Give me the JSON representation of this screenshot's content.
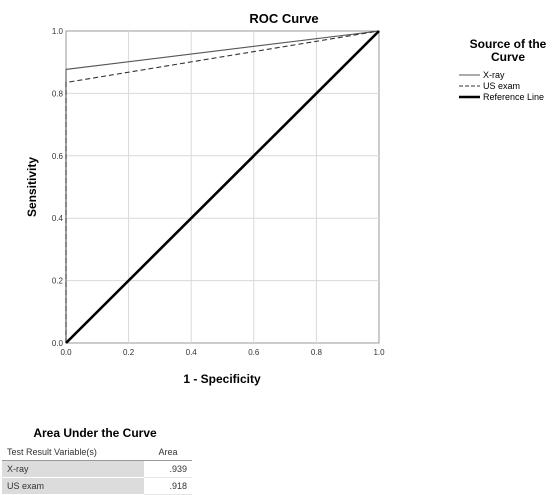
{
  "chart_data": {
    "type": "line",
    "title": "ROC Curve",
    "xlabel": "1 - Specificity",
    "ylabel": "Sensitivity",
    "xlim": [
      0,
      1
    ],
    "ylim": [
      0,
      1
    ],
    "xticks": [
      "0.0",
      "0.2",
      "0.4",
      "0.6",
      "0.8",
      "1.0"
    ],
    "yticks": [
      "0.0",
      "0.2",
      "0.4",
      "0.6",
      "0.8",
      "1.0"
    ],
    "grid": true,
    "legend": {
      "title": "Source of the Curve",
      "placement": "right"
    },
    "series": [
      {
        "name": "X-ray",
        "style": "solid",
        "color": "#555555",
        "points": [
          [
            0,
            0
          ],
          [
            0,
            0.877
          ],
          [
            1,
            1
          ]
        ]
      },
      {
        "name": "US exam",
        "style": "dashed",
        "color": "#333333",
        "points": [
          [
            0,
            0
          ],
          [
            0,
            0.835
          ],
          [
            1,
            1
          ]
        ]
      },
      {
        "name": "Reference Line",
        "style": "thick",
        "color": "#000000",
        "points": [
          [
            0,
            0
          ],
          [
            1,
            1
          ]
        ]
      }
    ]
  },
  "auc_table": {
    "title": "Area Under the Curve",
    "col_variable": "Test Result Variable(s)",
    "col_area": "Area",
    "rows": [
      {
        "label": "X-ray",
        "area": ".939"
      },
      {
        "label": "US exam",
        "area": ".918"
      }
    ]
  }
}
